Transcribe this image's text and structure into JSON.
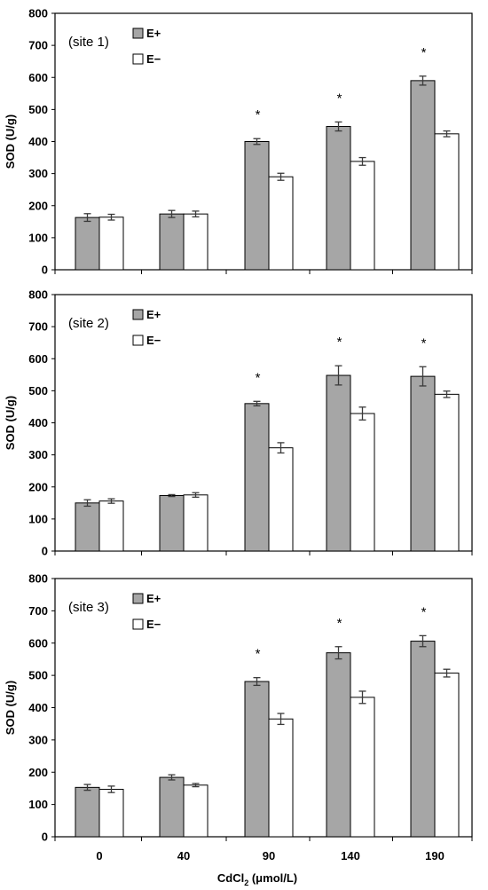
{
  "chart_data": [
    {
      "type": "bar",
      "site_label": "(site 1)",
      "ylabel": "SOD (U/g)",
      "ylim": [
        0,
        800
      ],
      "yticks": [
        0,
        100,
        200,
        300,
        400,
        500,
        600,
        700,
        800
      ],
      "categories": [
        "0",
        "40",
        "90",
        "140",
        "190"
      ],
      "series": [
        {
          "name": "E+",
          "color": "#a6a6a6",
          "values": [
            163,
            174,
            400,
            447,
            590
          ],
          "errors": [
            12,
            11,
            9,
            14,
            14
          ]
        },
        {
          "name": "E−",
          "color": "#ffffff",
          "values": [
            164,
            174,
            290,
            338,
            424
          ],
          "errors": [
            9,
            9,
            11,
            12,
            9
          ]
        }
      ],
      "significance": [
        "",
        "",
        "*",
        "*",
        "*"
      ],
      "legend": "top-left"
    },
    {
      "type": "bar",
      "site_label": "(site 2)",
      "ylabel": "SOD (U/g)",
      "ylim": [
        0,
        800
      ],
      "yticks": [
        0,
        100,
        200,
        300,
        400,
        500,
        600,
        700,
        800
      ],
      "categories": [
        "0",
        "40",
        "90",
        "140",
        "190"
      ],
      "series": [
        {
          "name": "E+",
          "color": "#a6a6a6",
          "values": [
            150,
            173,
            460,
            548,
            545
          ],
          "errors": [
            10,
            3,
            7,
            30,
            30
          ]
        },
        {
          "name": "E−",
          "color": "#ffffff",
          "values": [
            156,
            175,
            322,
            429,
            489
          ],
          "errors": [
            7,
            7,
            16,
            20,
            10
          ]
        }
      ],
      "significance": [
        "",
        "",
        "*",
        "*",
        "*"
      ],
      "legend": "top-left"
    },
    {
      "type": "bar",
      "site_label": "(site 3)",
      "ylabel": "SOD (U/g)",
      "ylim": [
        0,
        800
      ],
      "yticks": [
        0,
        100,
        200,
        300,
        400,
        500,
        600,
        700,
        800
      ],
      "categories": [
        "0",
        "40",
        "90",
        "140",
        "190"
      ],
      "series": [
        {
          "name": "E+",
          "color": "#a6a6a6",
          "values": [
            153,
            184,
            481,
            570,
            606
          ],
          "errors": [
            9,
            8,
            12,
            19,
            17
          ]
        },
        {
          "name": "E−",
          "color": "#ffffff",
          "values": [
            147,
            160,
            365,
            432,
            507
          ],
          "errors": [
            10,
            5,
            17,
            19,
            12
          ]
        }
      ],
      "significance": [
        "",
        "",
        "*",
        "*",
        "*"
      ],
      "legend": "top-left"
    }
  ],
  "xlabel": {
    "main": "CdCl",
    "subscript": "2",
    "unit": " (μmol/L)"
  }
}
